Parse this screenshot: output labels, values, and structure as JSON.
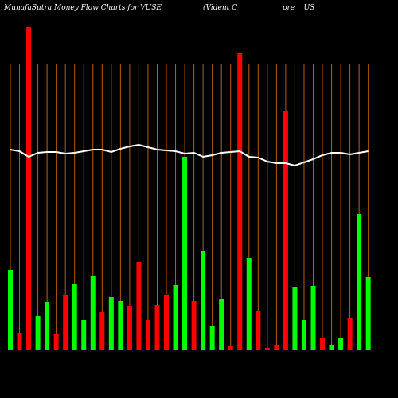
{
  "chart_data": {
    "type": "bar",
    "title": "MunafaSutra  Money Flow  Charts for VUSE",
    "subtitle": "(Vident C                    ore    US",
    "categories": [
      null,
      null,
      null,
      null,
      null,
      null,
      null,
      null,
      null,
      null,
      null,
      null,
      null,
      null,
      null,
      null,
      null,
      null,
      null,
      null,
      null,
      null,
      null,
      null,
      null,
      null,
      null,
      null,
      null,
      null,
      null,
      null,
      null,
      null,
      null,
      null,
      null,
      null,
      null,
      null
    ],
    "values": [
      101,
      22,
      406,
      43,
      60,
      20,
      70,
      83,
      38,
      93,
      48,
      67,
      62,
      56,
      111,
      38,
      57,
      70,
      82,
      243,
      62,
      125,
      30,
      64,
      5,
      373,
      116,
      49,
      3,
      6,
      300,
      80,
      38,
      81,
      15,
      7,
      15,
      41,
      171,
      92
    ],
    "colors": [
      "#00ff00",
      "#ff0000",
      "#ff0000",
      "#00ff00",
      "#00ff00",
      "#ff0000",
      "#ff0000",
      "#00ff00",
      "#00ff00",
      "#00ff00",
      "#ff0000",
      "#00ff00",
      "#00ff00",
      "#ff0000",
      "#ff0000",
      "#ff0000",
      "#ff0000",
      "#ff0000",
      "#00ff00",
      "#00ff00",
      "#ff0000",
      "#00ff00",
      "#00ff00",
      "#00ff00",
      "#ff0000",
      "#ff0000",
      "#00ff00",
      "#ff0000",
      "#ff0000",
      "#ff0000",
      "#ff0000",
      "#00ff00",
      "#00ff00",
      "#00ff00",
      "#ff0000",
      "#00ff00",
      "#00ff00",
      "#ff0000",
      "#00ff00",
      "#00ff00"
    ],
    "line_values": [
      252,
      250,
      243,
      248,
      249,
      249,
      247,
      248,
      250,
      252,
      252,
      249,
      253,
      256,
      258,
      255,
      252,
      251,
      250,
      247,
      248,
      243,
      245,
      248,
      249,
      250,
      243,
      242,
      237,
      235,
      235,
      232,
      236,
      240,
      245,
      248,
      248,
      246,
      248,
      250
    ],
    "line_color": "#ffffff",
    "grid_color": "#b8600b",
    "ylim": [
      0,
      410
    ],
    "grid": true
  }
}
